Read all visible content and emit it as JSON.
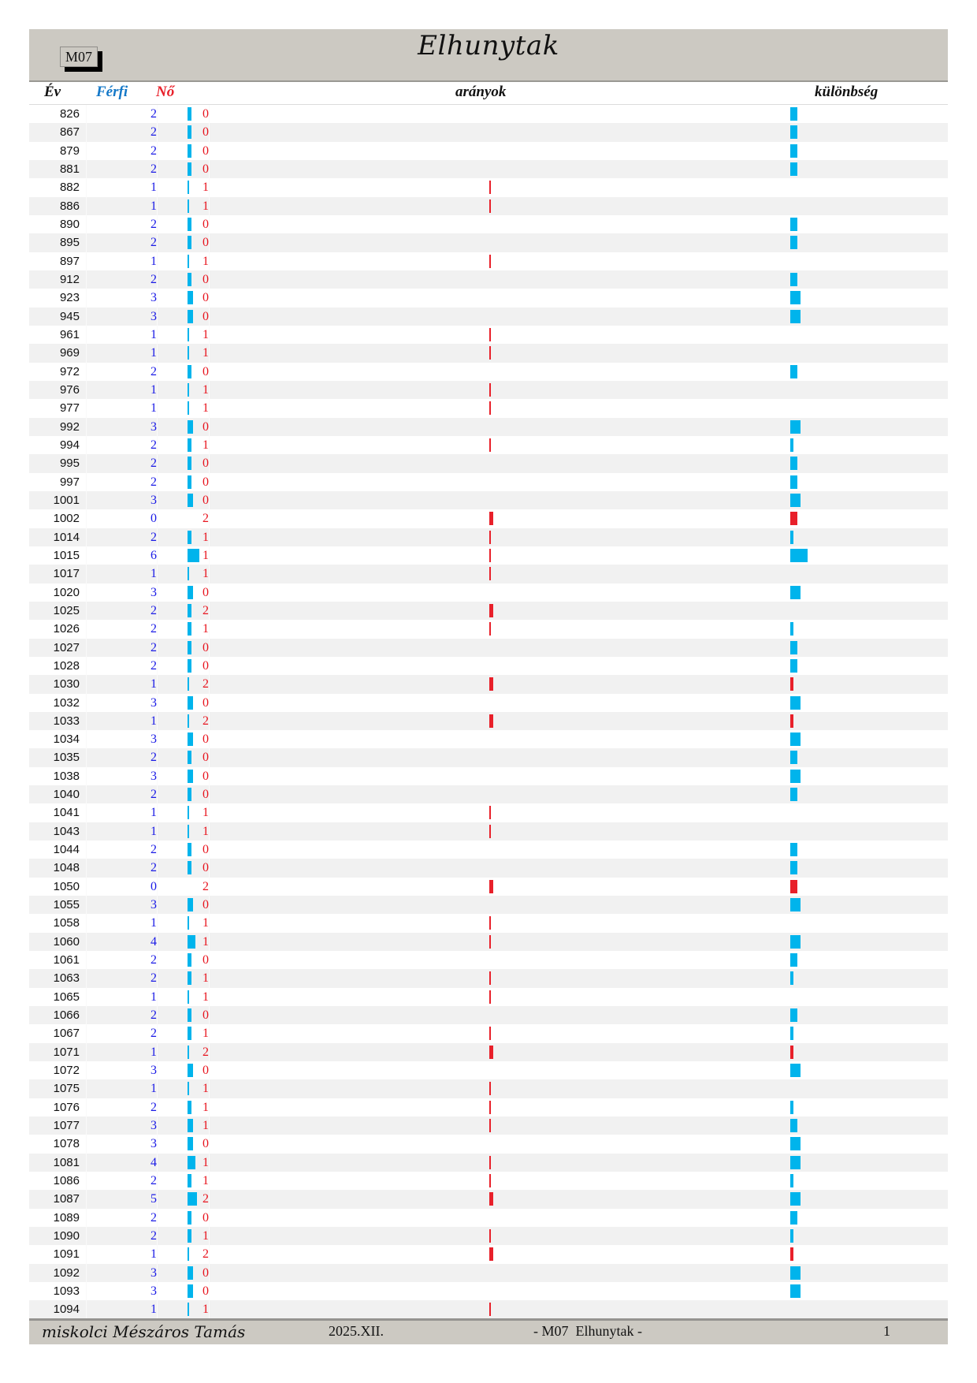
{
  "header": {
    "code": "M07",
    "title": "Elhunytak"
  },
  "columns": {
    "year": "Év",
    "male": "Férfi",
    "female": "Nő",
    "ratio": "arányok",
    "difference": "különbség"
  },
  "colors": {
    "male": "#00b4ec",
    "female": "#e8202a",
    "male_text": "#1a1ae6",
    "female_text": "#e8141e",
    "header_bg": "#ccc9c2"
  },
  "rows": [
    {
      "year": "826",
      "male": "2",
      "female": "0"
    },
    {
      "year": "867",
      "male": "2",
      "female": "0"
    },
    {
      "year": "879",
      "male": "2",
      "female": "0"
    },
    {
      "year": "881",
      "male": "2",
      "female": "0"
    },
    {
      "year": "882",
      "male": "1",
      "female": "1"
    },
    {
      "year": "886",
      "male": "1",
      "female": "1"
    },
    {
      "year": "890",
      "male": "2",
      "female": "0"
    },
    {
      "year": "895",
      "male": "2",
      "female": "0"
    },
    {
      "year": "897",
      "male": "1",
      "female": "1"
    },
    {
      "year": "912",
      "male": "2",
      "female": "0"
    },
    {
      "year": "923",
      "male": "3",
      "female": "0"
    },
    {
      "year": "945",
      "male": "3",
      "female": "0"
    },
    {
      "year": "961",
      "male": "1",
      "female": "1"
    },
    {
      "year": "969",
      "male": "1",
      "female": "1"
    },
    {
      "year": "972",
      "male": "2",
      "female": "0"
    },
    {
      "year": "976",
      "male": "1",
      "female": "1"
    },
    {
      "year": "977",
      "male": "1",
      "female": "1"
    },
    {
      "year": "992",
      "male": "3",
      "female": "0"
    },
    {
      "year": "994",
      "male": "2",
      "female": "1"
    },
    {
      "year": "995",
      "male": "2",
      "female": "0"
    },
    {
      "year": "997",
      "male": "2",
      "female": "0"
    },
    {
      "year": "1001",
      "male": "3",
      "female": "0"
    },
    {
      "year": "1002",
      "male": "0",
      "female": "2"
    },
    {
      "year": "1014",
      "male": "2",
      "female": "1"
    },
    {
      "year": "1015",
      "male": "6",
      "female": "1"
    },
    {
      "year": "1017",
      "male": "1",
      "female": "1"
    },
    {
      "year": "1020",
      "male": "3",
      "female": "0"
    },
    {
      "year": "1025",
      "male": "2",
      "female": "2"
    },
    {
      "year": "1026",
      "male": "2",
      "female": "1"
    },
    {
      "year": "1027",
      "male": "2",
      "female": "0"
    },
    {
      "year": "1028",
      "male": "2",
      "female": "0"
    },
    {
      "year": "1030",
      "male": "1",
      "female": "2"
    },
    {
      "year": "1032",
      "male": "3",
      "female": "0"
    },
    {
      "year": "1033",
      "male": "1",
      "female": "2"
    },
    {
      "year": "1034",
      "male": "3",
      "female": "0"
    },
    {
      "year": "1035",
      "male": "2",
      "female": "0"
    },
    {
      "year": "1038",
      "male": "3",
      "female": "0"
    },
    {
      "year": "1040",
      "male": "2",
      "female": "0"
    },
    {
      "year": "1041",
      "male": "1",
      "female": "1"
    },
    {
      "year": "1043",
      "male": "1",
      "female": "1"
    },
    {
      "year": "1044",
      "male": "2",
      "female": "0"
    },
    {
      "year": "1048",
      "male": "2",
      "female": "0"
    },
    {
      "year": "1050",
      "male": "0",
      "female": "2"
    },
    {
      "year": "1055",
      "male": "3",
      "female": "0"
    },
    {
      "year": "1058",
      "male": "1",
      "female": "1"
    },
    {
      "year": "1060",
      "male": "4",
      "female": "1"
    },
    {
      "year": "1061",
      "male": "2",
      "female": "0"
    },
    {
      "year": "1063",
      "male": "2",
      "female": "1"
    },
    {
      "year": "1065",
      "male": "1",
      "female": "1"
    },
    {
      "year": "1066",
      "male": "2",
      "female": "0"
    },
    {
      "year": "1067",
      "male": "2",
      "female": "1"
    },
    {
      "year": "1071",
      "male": "1",
      "female": "2"
    },
    {
      "year": "1072",
      "male": "3",
      "female": "0"
    },
    {
      "year": "1075",
      "male": "1",
      "female": "1"
    },
    {
      "year": "1076",
      "male": "2",
      "female": "1"
    },
    {
      "year": "1077",
      "male": "3",
      "female": "1"
    },
    {
      "year": "1078",
      "male": "3",
      "female": "0"
    },
    {
      "year": "1081",
      "male": "4",
      "female": "1"
    },
    {
      "year": "1086",
      "male": "2",
      "female": "1"
    },
    {
      "year": "1087",
      "male": "5",
      "female": "2"
    },
    {
      "year": "1089",
      "male": "2",
      "female": "0"
    },
    {
      "year": "1090",
      "male": "2",
      "female": "1"
    },
    {
      "year": "1091",
      "male": "1",
      "female": "2"
    },
    {
      "year": "1092",
      "male": "3",
      "female": "0"
    },
    {
      "year": "1093",
      "male": "3",
      "female": "0"
    },
    {
      "year": "1094",
      "male": "1",
      "female": "1"
    }
  ],
  "footer": {
    "author": "miskolci Mészáros Tamás",
    "date": "2025.XII.",
    "center": "- M07  Elhunytak -",
    "page": "1"
  }
}
